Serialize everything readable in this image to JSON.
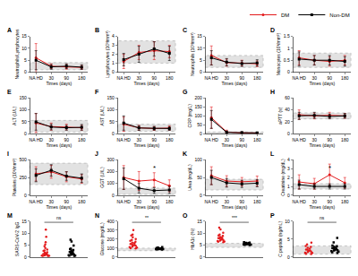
{
  "chart_data": [
    {
      "type": "line",
      "title": "A",
      "y_label": "Neutrophils/Lymphocytes",
      "x_label": "Times (days)",
      "legend": "top right",
      "categories": [
        "NA HD",
        "30",
        "90",
        "180"
      ],
      "ylim": [
        0,
        15
      ],
      "yticks": [
        0,
        5,
        10,
        15
      ],
      "reference_range": [
        1,
        4
      ],
      "grid": false,
      "series": [
        {
          "name": "DM",
          "color": "#e31a1c",
          "marker": "circle",
          "values": [
            6,
            2.5,
            2.2,
            2.0
          ],
          "errors": [
            6,
            1,
            1,
            0.8
          ]
        },
        {
          "name": "Non-DM",
          "color": "#000000",
          "marker": "square",
          "values": [
            5,
            2.2,
            2.5,
            2.1
          ],
          "errors": [
            4,
            1,
            1,
            1
          ]
        }
      ]
    },
    {
      "type": "line",
      "title": "B",
      "y_label": "Lymphocytes (10³/mm³)",
      "x_label": "Times (days)",
      "categories": [
        "NA HD",
        "30",
        "90",
        "180"
      ],
      "ylim": [
        0,
        4
      ],
      "yticks": [
        0,
        1,
        2,
        3,
        4
      ],
      "reference_range": [
        1,
        3.5
      ],
      "grid": false,
      "series": [
        {
          "name": "DM",
          "color": "#e31a1c",
          "marker": "circle",
          "values": [
            1.2,
            2.2,
            2.4,
            2.3
          ],
          "errors": [
            0.8,
            0.8,
            1,
            0.7
          ]
        },
        {
          "name": "Non-DM",
          "color": "#000000",
          "marker": "square",
          "values": [
            1.4,
            2.0,
            2.6,
            2.1
          ],
          "errors": [
            0.7,
            0.9,
            0.8,
            0.8
          ]
        }
      ]
    },
    {
      "type": "line",
      "title": "C",
      "y_label": "Neutrophils (10³/mm³)",
      "x_label": "Times (days)",
      "categories": [
        "NA HD",
        "30",
        "90",
        "180"
      ],
      "ylim": [
        0,
        15
      ],
      "yticks": [
        0,
        5,
        10,
        15
      ],
      "reference_range": [
        2,
        7
      ],
      "grid": false,
      "series": [
        {
          "name": "DM",
          "color": "#e31a1c",
          "marker": "circle",
          "values": [
            7,
            4,
            3.8,
            3.5
          ],
          "errors": [
            4,
            1.5,
            1.2,
            1.2
          ]
        },
        {
          "name": "Non-DM",
          "color": "#000000",
          "marker": "square",
          "values": [
            6,
            4.2,
            3.6,
            3.9
          ],
          "errors": [
            3,
            1.5,
            1.2,
            1.3
          ]
        }
      ]
    },
    {
      "type": "line",
      "title": "D",
      "y_label": "Monocytes (10³/mm³)",
      "x_label": "Times (days)",
      "categories": [
        "NA HD",
        "30",
        "90",
        "180"
      ],
      "ylim": [
        0,
        1.5
      ],
      "yticks": [
        0,
        0.5,
        1,
        1.5
      ],
      "reference_range": [
        0.2,
        0.8
      ],
      "grid": false,
      "series": [
        {
          "name": "DM",
          "color": "#e31a1c",
          "marker": "circle",
          "values": [
            0.6,
            0.5,
            0.45,
            0.5
          ],
          "errors": [
            0.3,
            0.2,
            0.2,
            0.2
          ]
        },
        {
          "name": "Non-DM",
          "color": "#000000",
          "marker": "square",
          "values": [
            0.55,
            0.5,
            0.5,
            0.45
          ],
          "errors": [
            0.3,
            0.2,
            0.2,
            0.2
          ]
        }
      ]
    },
    {
      "type": "line",
      "title": "E",
      "y_label": "ALT (U/L)",
      "x_label": "Times (days)",
      "categories": [
        "NA HD",
        "30",
        "90",
        "180"
      ],
      "ylim": [
        0,
        150
      ],
      "yticks": [
        0,
        50,
        100,
        150
      ],
      "reference_range": [
        7,
        56
      ],
      "grid": false,
      "series": [
        {
          "name": "DM",
          "color": "#e31a1c",
          "marker": "circle",
          "values": [
            45,
            30,
            28,
            25
          ],
          "errors": [
            40,
            15,
            12,
            10
          ]
        },
        {
          "name": "Non-DM",
          "color": "#000000",
          "marker": "square",
          "values": [
            50,
            28,
            25,
            27
          ],
          "errors": [
            35,
            12,
            10,
            12
          ]
        }
      ]
    },
    {
      "type": "line",
      "title": "F",
      "y_label": "AST (U/L)",
      "x_label": "Times (days)",
      "categories": [
        "NA HD",
        "30",
        "90",
        "180"
      ],
      "ylim": [
        0,
        150
      ],
      "yticks": [
        0,
        50,
        100,
        150
      ],
      "reference_range": [
        10,
        40
      ],
      "grid": false,
      "series": [
        {
          "name": "DM",
          "color": "#e31a1c",
          "marker": "circle",
          "values": [
            40,
            25,
            22,
            24
          ],
          "errors": [
            30,
            10,
            8,
            9
          ]
        },
        {
          "name": "Non-DM",
          "color": "#000000",
          "marker": "square",
          "values": [
            45,
            24,
            23,
            22
          ],
          "errors": [
            30,
            10,
            8,
            8
          ]
        }
      ]
    },
    {
      "type": "line",
      "title": "G",
      "y_label": "CRP (mg/L)",
      "x_label": "Times (days)",
      "categories": [
        "NA HD",
        "30",
        "90",
        "180"
      ],
      "ylim": [
        0,
        200
      ],
      "yticks": [
        0,
        50,
        100,
        150,
        200
      ],
      "reference_range": [
        0,
        10
      ],
      "grid": false,
      "series": [
        {
          "name": "DM",
          "color": "#e31a1c",
          "marker": "circle",
          "values": [
            90,
            10,
            5,
            4
          ],
          "errors": [
            60,
            10,
            5,
            4
          ]
        },
        {
          "name": "Non-DM",
          "color": "#000000",
          "marker": "square",
          "values": [
            80,
            8,
            6,
            5
          ],
          "errors": [
            50,
            8,
            5,
            4
          ]
        }
      ]
    },
    {
      "type": "line",
      "title": "H",
      "y_label": "aPTT (s)",
      "x_label": "Times (days)",
      "categories": [
        "NA HD",
        "30",
        "90",
        "180"
      ],
      "ylim": [
        0,
        60
      ],
      "yticks": [
        0,
        20,
        40,
        60
      ],
      "reference_range": [
        25,
        35
      ],
      "grid": false,
      "series": [
        {
          "name": "DM",
          "color": "#e31a1c",
          "marker": "circle",
          "values": [
            32,
            30,
            31,
            30
          ],
          "errors": [
            8,
            5,
            5,
            4
          ]
        },
        {
          "name": "Non-DM",
          "color": "#000000",
          "marker": "square",
          "values": [
            30,
            31,
            29,
            30
          ],
          "errors": [
            6,
            5,
            4,
            4
          ]
        }
      ]
    },
    {
      "type": "line",
      "title": "I",
      "y_label": "Platelets (10³/mm³)",
      "x_label": "Times (days)",
      "categories": [
        "NA HD",
        "30",
        "90",
        "180"
      ],
      "ylim": [
        0,
        500
      ],
      "yticks": [
        0,
        250,
        500
      ],
      "reference_range": [
        150,
        450
      ],
      "grid": false,
      "series": [
        {
          "name": "DM",
          "color": "#e31a1c",
          "marker": "circle",
          "values": [
            300,
            330,
            260,
            230
          ],
          "errors": [
            100,
            90,
            70,
            60
          ]
        },
        {
          "name": "Non-DM",
          "color": "#000000",
          "marker": "square",
          "values": [
            280,
            350,
            270,
            240
          ],
          "errors": [
            90,
            80,
            60,
            60
          ]
        }
      ]
    },
    {
      "type": "line",
      "title": "J",
      "y_label": "GGT (U/L)",
      "x_label": "Times (days)",
      "categories": [
        "NA HD",
        "30",
        "90",
        "180"
      ],
      "ylim": [
        0,
        300
      ],
      "yticks": [
        0,
        100,
        200,
        300
      ],
      "reference_range": [
        8,
        61
      ],
      "grid": false,
      "annotations": [
        {
          "text": "*",
          "x": "90"
        }
      ],
      "series": [
        {
          "name": "DM",
          "color": "#e31a1c",
          "marker": "circle",
          "values": [
            150,
            120,
            130,
            80
          ],
          "errors": [
            100,
            80,
            60,
            50
          ]
        },
        {
          "name": "Non-DM",
          "color": "#000000",
          "marker": "square",
          "values": [
            140,
            60,
            40,
            45
          ],
          "errors": [
            90,
            40,
            25,
            30
          ]
        }
      ]
    },
    {
      "type": "line",
      "title": "K",
      "y_label": "Urea (mg/dL)",
      "x_label": "Times (days)",
      "categories": [
        "NA HD",
        "30",
        "90",
        "180"
      ],
      "ylim": [
        0,
        100
      ],
      "yticks": [
        0,
        50,
        100
      ],
      "reference_range": [
        15,
        45
      ],
      "grid": false,
      "series": [
        {
          "name": "DM",
          "color": "#e31a1c",
          "marker": "circle",
          "values": [
            55,
            40,
            38,
            40
          ],
          "errors": [
            25,
            15,
            12,
            14
          ]
        },
        {
          "name": "Non-DM",
          "color": "#000000",
          "marker": "square",
          "values": [
            50,
            35,
            32,
            34
          ],
          "errors": [
            20,
            12,
            10,
            10
          ]
        }
      ]
    },
    {
      "type": "line",
      "title": "L",
      "y_label": "Creatinine (mg/dL)",
      "x_label": "Times (days)",
      "categories": [
        "NA HD",
        "30",
        "90",
        "180"
      ],
      "ylim": [
        0,
        4
      ],
      "yticks": [
        0,
        1,
        2,
        3,
        4
      ],
      "reference_range": [
        0.7,
        1.3
      ],
      "grid": false,
      "annotations": [
        {
          "text": "*",
          "x": "90"
        }
      ],
      "series": [
        {
          "name": "DM",
          "color": "#e31a1c",
          "marker": "circle",
          "values": [
            1.5,
            1.3,
            2.3,
            1.4
          ],
          "errors": [
            0.8,
            0.6,
            1.2,
            0.6
          ]
        },
        {
          "name": "Non-DM",
          "color": "#000000",
          "marker": "square",
          "values": [
            1.2,
            1.0,
            1.0,
            1.0
          ],
          "errors": [
            0.5,
            0.3,
            0.3,
            0.3
          ]
        }
      ]
    },
    {
      "type": "strip",
      "title": "M",
      "y_label": "SARS-CoV-2 IgG",
      "tick_labels": "y",
      "ylim": [
        0,
        15
      ],
      "yticks": [
        0,
        5,
        10,
        15
      ],
      "grid": false,
      "annotations": [
        {
          "text": "ns"
        }
      ],
      "series": [
        {
          "name": "DM",
          "color": "#e31a1c",
          "marker": "circle",
          "values": [
            0.5,
            1.2,
            2.5,
            0.8,
            3.1,
            4.5,
            1.0,
            0.3,
            6.2,
            2.0,
            1.5,
            0.7,
            8.5,
            3.8,
            0.4,
            1.1,
            2.7,
            5.3,
            0.9,
            11.5,
            1.8,
            0.6
          ]
        },
        {
          "name": "Non-DM",
          "color": "#000000",
          "marker": "square",
          "values": [
            0.6,
            1.4,
            2.2,
            3.5,
            0.9,
            4.8,
            1.7,
            0.5,
            2.9,
            6.5,
            1.2,
            0.8,
            3.3,
            2.1,
            7.2,
            1.0,
            0.4,
            2.6
          ]
        }
      ]
    },
    {
      "type": "strip",
      "title": "N",
      "y_label": "Glucose (mg/dL)",
      "tick_labels": "y",
      "ylim": [
        0,
        400
      ],
      "yticks": [
        0,
        100,
        200,
        300,
        400
      ],
      "reference_range": [
        70,
        99
      ],
      "grid": false,
      "annotations": [
        {
          "text": "**"
        }
      ],
      "series": [
        {
          "name": "DM",
          "color": "#e31a1c",
          "marker": "circle",
          "values": [
            110,
            135,
            160,
            98,
            180,
            220,
            145,
            125,
            250,
            190,
            105,
            170,
            300,
            140,
            115,
            200,
            155,
            130,
            95,
            240
          ]
        },
        {
          "name": "Non-DM",
          "color": "#000000",
          "marker": "square",
          "values": [
            85,
            92,
            88,
            95,
            100,
            90,
            97,
            83,
            105,
            89,
            93,
            99,
            87,
            110,
            91,
            94
          ]
        }
      ]
    },
    {
      "type": "strip",
      "title": "O",
      "y_label": "HbA1c (%)",
      "tick_labels": "y",
      "ylim": [
        0,
        15
      ],
      "yticks": [
        0,
        5,
        10,
        15
      ],
      "reference_range": [
        4,
        5.7
      ],
      "grid": false,
      "annotations": [
        {
          "text": "***"
        }
      ],
      "series": [
        {
          "name": "DM",
          "color": "#e31a1c",
          "marker": "circle",
          "values": [
            6.5,
            7.2,
            8.1,
            6.9,
            9.4,
            7.8,
            10.2,
            6.2,
            8.8,
            7.5,
            11.6,
            6.7,
            9.0,
            7.1,
            8.4,
            6.4,
            12.3,
            7.9
          ]
        },
        {
          "name": "Non-DM",
          "color": "#000000",
          "marker": "square",
          "values": [
            5.2,
            5.5,
            5.8,
            5.1,
            6.0,
            5.4,
            5.6,
            5.3,
            5.9,
            5.0,
            5.7,
            6.2,
            5.4,
            5.5
          ]
        }
      ]
    },
    {
      "type": "strip",
      "title": "P",
      "y_label": "C peptide (ng/mL)",
      "tick_labels": "y",
      "ylim": [
        0,
        10
      ],
      "yticks": [
        0,
        5,
        10
      ],
      "reference_range": [
        0.8,
        3.1
      ],
      "grid": false,
      "annotations": [
        {
          "text": "ns"
        }
      ],
      "series": [
        {
          "name": "DM",
          "color": "#e31a1c",
          "marker": "circle",
          "values": [
            1.2,
            2.1,
            1.8,
            0.9,
            2.6,
            3.1,
            1.5,
            2.3,
            1.1,
            4.0,
            1.7,
            2.8,
            1.4,
            0.8,
            2.0,
            3.5
          ]
        },
        {
          "name": "Non-DM",
          "color": "#000000",
          "marker": "square",
          "values": [
            1.5,
            2.4,
            1.9,
            2.8,
            3.2,
            1.3,
            2.2,
            4.1,
            1.8,
            2.6,
            5.3,
            1.6,
            3.0,
            2.0,
            1.1,
            2.5
          ]
        }
      ]
    }
  ]
}
